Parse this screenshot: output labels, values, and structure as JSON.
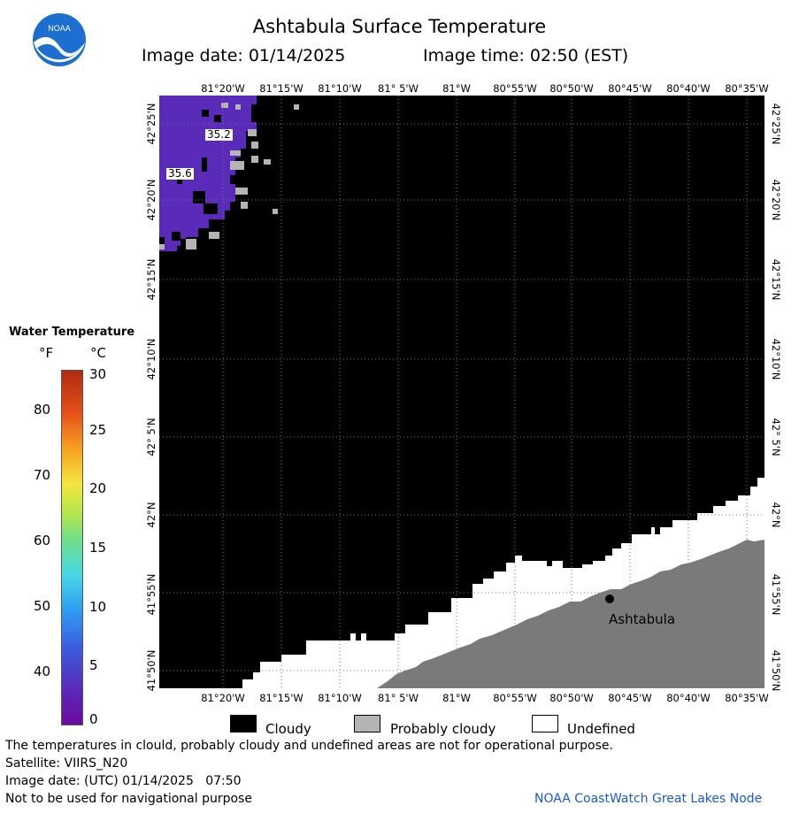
{
  "title": "Ashtabula Surface Temperature",
  "image_date_label": "Image date: 01/14/2025",
  "image_time_label": "Image time: 02:50 (EST)",
  "logo_text": "NOAA",
  "lon_ticks_top": [
    "81°20'W",
    "81°15'W",
    "81°10'W",
    "81° 5'W",
    "81°W",
    "80°55'W",
    "80°50'W",
    "80°45'W",
    "80°40'W",
    "80°35'W"
  ],
  "lon_ticks_bottom": [
    "81°20'W",
    "81°15'W",
    "81°10'W",
    "81° 5'W",
    "81°W",
    "80°55'W",
    "80°50'W",
    "80°45'W",
    "80°40'W",
    "80°35'W"
  ],
  "lat_ticks_left": [
    "42°25'N",
    "42°20'N",
    "42°15'N",
    "42°10'N",
    "42° 5'N",
    "42°N",
    "41°55'N",
    "41°50'N"
  ],
  "lat_ticks_right": [
    "42°25'N",
    "42°20'N",
    "42°15'N",
    "42°10'N",
    "42° 5'N",
    "42°N",
    "41°55'N",
    "41°50'N"
  ],
  "temp_labels": [
    "35.2",
    "35.6"
  ],
  "city_label": "Ashtabula",
  "colorbar": {
    "title": "Water Temperature",
    "unit_f": "°F",
    "unit_c": "°C",
    "f_ticks": [
      "80",
      "70",
      "60",
      "50",
      "40"
    ],
    "c_ticks": [
      "30",
      "25",
      "20",
      "15",
      "10",
      "5",
      "0"
    ]
  },
  "legend": {
    "cloudy": "Cloudy",
    "probably_cloudy": "Probably cloudy",
    "undefined": "Undefined"
  },
  "colors": {
    "cloudy": "#000000",
    "probably_cloudy": "#b4b4b4",
    "undefined": "#ffffff",
    "land": "#7a7a7a",
    "water_temp": "#5a2ab8",
    "credit": "#1a5ad0"
  },
  "footer": {
    "disclaimer": "The temperatures in clould, probably cloudy and undefined areas are not for operational purpose.",
    "satellite": "Satellite: VIIRS_N20",
    "utc_date": "Image date: (UTC) 01/14/2025   07:50",
    "nav_warning": "Not to be used for navigational purpose",
    "credit": "NOAA CoastWatch Great Lakes Node"
  }
}
